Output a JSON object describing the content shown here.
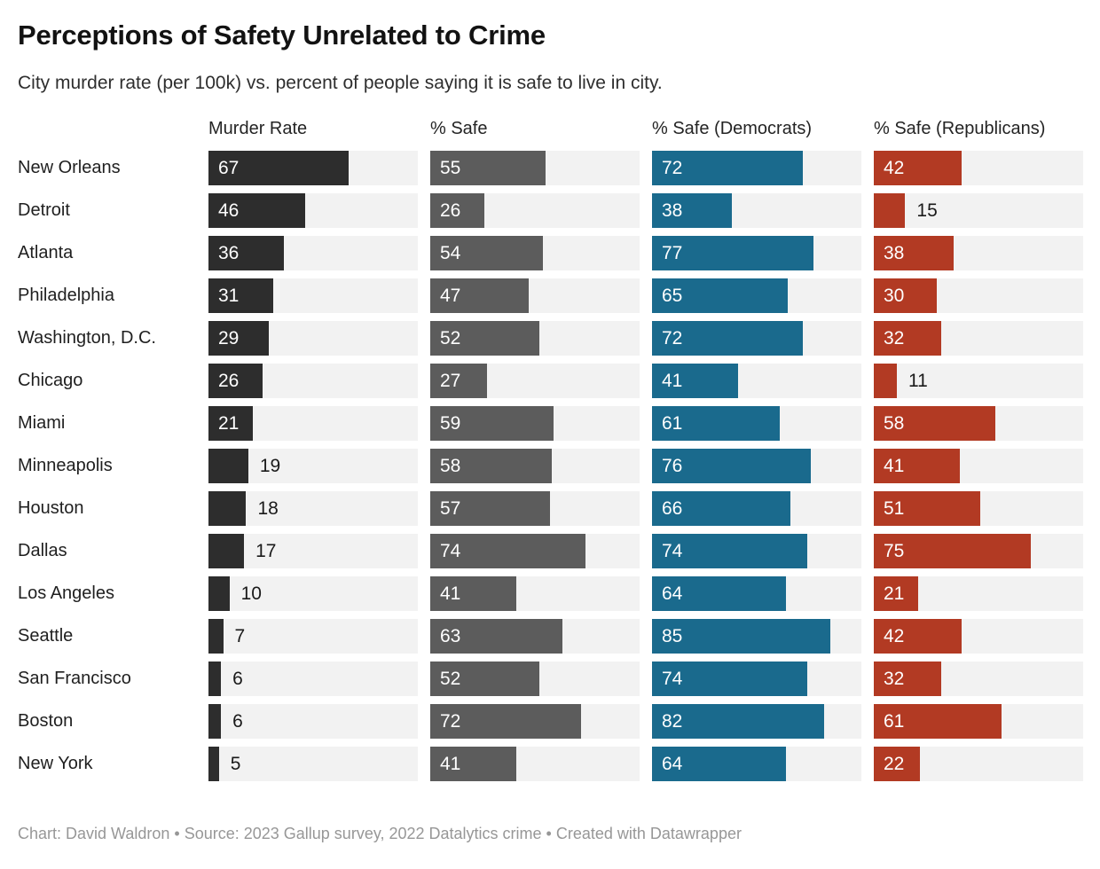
{
  "header": {
    "title": "Perceptions of Safety Unrelated to Crime",
    "subtitle": "City murder rate (per 100k) vs. percent of people saying it is safe to live in city."
  },
  "footer": {
    "text": "Chart: David Waldron • Source: 2023 Gallup survey, 2022 Datalytics crime • Created with Datawrapper"
  },
  "colors": {
    "track_background": "#f2f2f2",
    "murder_rate_bar": "#2d2d2d",
    "safe_bar": "#5c5c5c",
    "democrats_bar": "#1a6a8d",
    "republicans_bar": "#b23a23",
    "value_label_inside": "#ffffff",
    "value_label_outside": "#1a1a1a"
  },
  "chart_data": {
    "type": "bar",
    "orientation": "horizontal",
    "title": "Perceptions of Safety Unrelated to Crime",
    "subtitle": "City murder rate (per 100k) vs. percent of people saying it is safe to live in city.",
    "xlim": [
      0,
      100
    ],
    "grid": false,
    "legend_position": "column-headers",
    "value_labels": "inside-bar, outside when bar shorter than ~20 units",
    "categories": [
      "New Orleans",
      "Detroit",
      "Atlanta",
      "Philadelphia",
      "Washington, D.C.",
      "Chicago",
      "Miami",
      "Minneapolis",
      "Houston",
      "Dallas",
      "Los Angeles",
      "Seattle",
      "San Francisco",
      "Boston",
      "New York"
    ],
    "series": [
      {
        "name": "Murder Rate",
        "color": "#2d2d2d",
        "values": [
          67,
          46,
          36,
          31,
          29,
          26,
          21,
          19,
          18,
          17,
          10,
          7,
          6,
          6,
          5
        ]
      },
      {
        "name": "% Safe",
        "color": "#5c5c5c",
        "values": [
          55,
          26,
          54,
          47,
          52,
          27,
          59,
          58,
          57,
          74,
          41,
          63,
          52,
          72,
          41
        ]
      },
      {
        "name": "% Safe (Democrats)",
        "color": "#1a6a8d",
        "values": [
          72,
          38,
          77,
          65,
          72,
          41,
          61,
          76,
          66,
          74,
          64,
          85,
          74,
          82,
          64
        ]
      },
      {
        "name": "% Safe (Republicans)",
        "color": "#b23a23",
        "values": [
          42,
          15,
          38,
          30,
          32,
          11,
          58,
          41,
          51,
          75,
          21,
          42,
          32,
          61,
          22
        ]
      }
    ]
  }
}
